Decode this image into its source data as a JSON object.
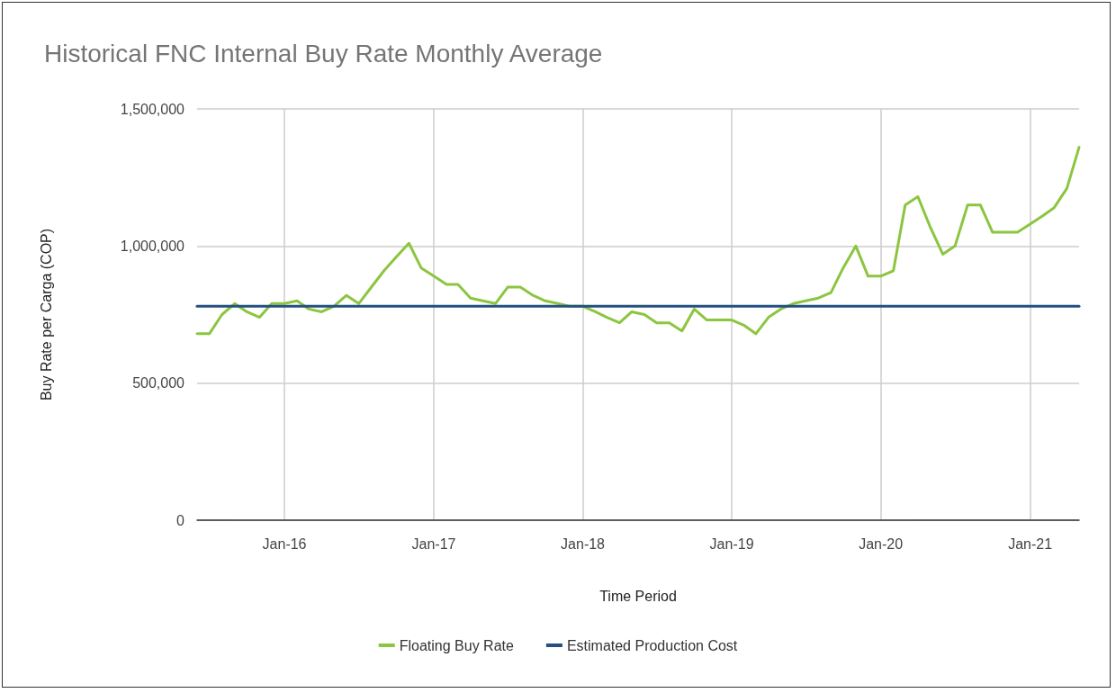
{
  "chart_data": {
    "type": "line",
    "title": "Historical FNC Internal Buy Rate Monthly Average",
    "xlabel": "Time Period",
    "ylabel": "Buy Rate per Carga (COP)",
    "xlim": [
      "2015-06",
      "2021-05"
    ],
    "xticks": [
      {
        "value": "2016-01",
        "label": "Jan-16"
      },
      {
        "value": "2017-01",
        "label": "Jan-17"
      },
      {
        "value": "2018-01",
        "label": "Jan-18"
      },
      {
        "value": "2019-01",
        "label": "Jan-19"
      },
      {
        "value": "2020-01",
        "label": "Jan-20"
      },
      {
        "value": "2021-01",
        "label": "Jan-21"
      }
    ],
    "ylim": [
      0,
      1500000
    ],
    "yticks": [
      {
        "value": 0,
        "label": "0"
      },
      {
        "value": 500000,
        "label": "500,000"
      },
      {
        "value": 1000000,
        "label": "1,000,000"
      },
      {
        "value": 1500000,
        "label": "1,500,000"
      }
    ],
    "grid": true,
    "legend": "bottom",
    "marker": "none",
    "line_style": "solid",
    "series": [
      {
        "name": "Floating Buy Rate",
        "color": "#8cc540",
        "x": [
          "2015-06",
          "2015-07",
          "2015-08",
          "2015-09",
          "2015-10",
          "2015-11",
          "2015-12",
          "2016-01",
          "2016-02",
          "2016-03",
          "2016-04",
          "2016-05",
          "2016-06",
          "2016-07",
          "2016-08",
          "2016-09",
          "2016-10",
          "2016-11",
          "2016-12",
          "2017-01",
          "2017-02",
          "2017-03",
          "2017-04",
          "2017-05",
          "2017-06",
          "2017-07",
          "2017-08",
          "2017-09",
          "2017-10",
          "2017-11",
          "2017-12",
          "2018-01",
          "2018-02",
          "2018-03",
          "2018-04",
          "2018-05",
          "2018-06",
          "2018-07",
          "2018-08",
          "2018-09",
          "2018-10",
          "2018-11",
          "2018-12",
          "2019-01",
          "2019-02",
          "2019-03",
          "2019-04",
          "2019-05",
          "2019-06",
          "2019-07",
          "2019-08",
          "2019-09",
          "2019-10",
          "2019-11",
          "2019-12",
          "2020-01",
          "2020-02",
          "2020-03",
          "2020-04",
          "2020-05",
          "2020-06",
          "2020-07",
          "2020-08",
          "2020-09",
          "2020-10",
          "2020-11",
          "2020-12",
          "2021-01",
          "2021-02",
          "2021-03",
          "2021-04",
          "2021-05"
        ],
        "values": [
          680000,
          680000,
          750000,
          790000,
          760000,
          740000,
          790000,
          790000,
          800000,
          770000,
          760000,
          780000,
          820000,
          790000,
          850000,
          910000,
          960000,
          1010000,
          920000,
          890000,
          860000,
          860000,
          810000,
          800000,
          790000,
          850000,
          850000,
          820000,
          800000,
          790000,
          780000,
          780000,
          760000,
          740000,
          720000,
          760000,
          750000,
          720000,
          720000,
          690000,
          770000,
          730000,
          730000,
          730000,
          710000,
          680000,
          740000,
          770000,
          790000,
          800000,
          810000,
          830000,
          920000,
          1000000,
          890000,
          890000,
          910000,
          1150000,
          1180000,
          1070000,
          970000,
          1000000,
          1150000,
          1150000,
          1050000,
          1050000,
          1050000,
          1080000,
          1110000,
          1140000,
          1210000,
          1360000
        ]
      },
      {
        "name": "Estimated Production Cost",
        "color": "#23507f",
        "x": [
          "2015-06",
          "2021-05"
        ],
        "values": [
          780000,
          780000
        ]
      }
    ]
  }
}
